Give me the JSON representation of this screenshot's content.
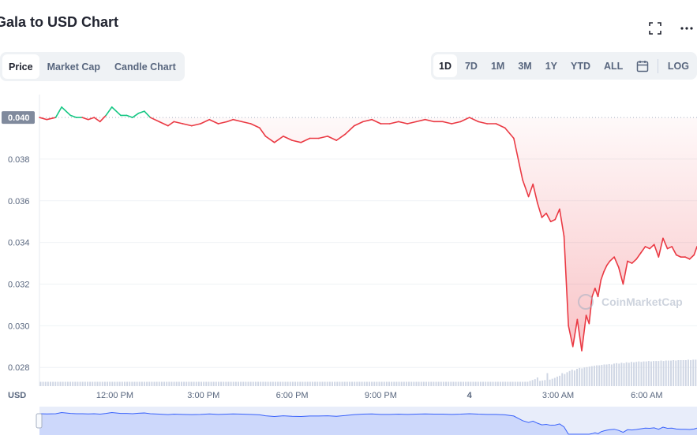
{
  "header": {
    "title": "Gala to USD Chart",
    "tabs": [
      {
        "label": "Price",
        "active": true
      },
      {
        "label": "Market Cap",
        "active": false
      },
      {
        "label": "Candle Chart",
        "active": false
      }
    ],
    "ranges": [
      {
        "label": "1D",
        "active": true
      },
      {
        "label": "7D",
        "active": false
      },
      {
        "label": "1M",
        "active": false
      },
      {
        "label": "3M",
        "active": false
      },
      {
        "label": "1Y",
        "active": false
      },
      {
        "label": "YTD",
        "active": false
      },
      {
        "label": "ALL",
        "active": false
      }
    ],
    "log_label": "LOG",
    "icons": [
      "fullscreen-icon",
      "more-icon",
      "calendar-icon"
    ]
  },
  "watermark": "CoinMarketCap",
  "chart_data": {
    "type": "line",
    "currency_label": "USD",
    "reference_price": 0.04,
    "reference_label": "0.040",
    "y_ticks": [
      0.028,
      0.03,
      0.032,
      0.034,
      0.036,
      0.038
    ],
    "y_tick_labels": [
      "0.028",
      "0.030",
      "0.032",
      "0.034",
      "0.036",
      "0.038"
    ],
    "ylim": [
      0.0271,
      0.0411
    ],
    "x_ticks": [
      "12:00 PM",
      "3:00 PM",
      "6:00 PM",
      "9:00 PM",
      "4",
      "3:00 AM",
      "6:00 AM"
    ],
    "x_tick_hours": [
      12,
      15,
      18,
      21,
      24,
      27,
      30
    ],
    "xlim": [
      9.45,
      31.7
    ],
    "colors": {
      "up": "#16c784",
      "down": "#ea3943",
      "volume": "#cfd6e4",
      "navigator": "#3861fb"
    },
    "series": [
      {
        "x": [
          9.45,
          9.7,
          10.0,
          10.2,
          10.5,
          10.7,
          10.9,
          11.1,
          11.3,
          11.5,
          11.7,
          11.9,
          12.2,
          12.4,
          12.6,
          12.8,
          13.0,
          13.2,
          13.5,
          13.8,
          14.0,
          14.3,
          14.6,
          14.9,
          15.2,
          15.5,
          15.8,
          16.0,
          16.3,
          16.6,
          16.9,
          17.1,
          17.4,
          17.7,
          18.0,
          18.3,
          18.6,
          18.9,
          19.2,
          19.5,
          19.8,
          20.1,
          20.4,
          20.7,
          21.0,
          21.3,
          21.6,
          21.9,
          22.2,
          22.5,
          22.8,
          23.1,
          23.4,
          23.7,
          24.0,
          24.3,
          24.6,
          24.9,
          25.2,
          25.5,
          25.8,
          26.0,
          26.15,
          26.3,
          26.45,
          26.6,
          26.75,
          26.9,
          27.05,
          27.2,
          27.35,
          27.5,
          27.65,
          27.8,
          27.95,
          28.05,
          28.15,
          28.25,
          28.35,
          28.45,
          28.55,
          28.65,
          28.75,
          28.9,
          29.05,
          29.2,
          29.35,
          29.5,
          29.65,
          29.8,
          29.95,
          30.1,
          30.25,
          30.4,
          30.55,
          30.7,
          30.85,
          31.0,
          31.15,
          31.3,
          31.45,
          31.6,
          31.7
        ],
        "y": [
          0.04,
          0.0399,
          0.04,
          0.0405,
          0.0401,
          0.04,
          0.04,
          0.0399,
          0.04,
          0.0398,
          0.0401,
          0.0405,
          0.0401,
          0.0401,
          0.04,
          0.0402,
          0.0403,
          0.04,
          0.0398,
          0.0396,
          0.0398,
          0.0397,
          0.0396,
          0.0397,
          0.0399,
          0.0397,
          0.0398,
          0.0399,
          0.0398,
          0.0397,
          0.0395,
          0.0391,
          0.0388,
          0.0391,
          0.0389,
          0.0388,
          0.039,
          0.039,
          0.0391,
          0.0389,
          0.0392,
          0.0396,
          0.0398,
          0.0399,
          0.0397,
          0.0397,
          0.0398,
          0.0397,
          0.0398,
          0.0399,
          0.0398,
          0.0398,
          0.0397,
          0.0398,
          0.04,
          0.0398,
          0.0397,
          0.0397,
          0.0395,
          0.039,
          0.037,
          0.0362,
          0.0368,
          0.0359,
          0.0352,
          0.0354,
          0.035,
          0.0351,
          0.0356,
          0.0343,
          0.03,
          0.029,
          0.0303,
          0.0288,
          0.0305,
          0.0301,
          0.0314,
          0.0318,
          0.0314,
          0.0322,
          0.0326,
          0.0329,
          0.0331,
          0.0333,
          0.0328,
          0.032,
          0.0331,
          0.033,
          0.0332,
          0.0335,
          0.0338,
          0.0337,
          0.0339,
          0.0333,
          0.0342,
          0.0337,
          0.0338,
          0.0334,
          0.0333,
          0.0333,
          0.0332,
          0.0334,
          0.0338
        ]
      }
    ],
    "volume_relative": [
      0.1,
      0.1,
      0.1,
      0.1,
      0.1,
      0.1,
      0.1,
      0.1,
      0.1,
      0.1,
      0.1,
      0.1,
      0.1,
      0.1,
      0.1,
      0.1,
      0.1,
      0.1,
      0.1,
      0.1,
      0.1,
      0.1,
      0.1,
      0.1,
      0.1,
      0.1,
      0.1,
      0.1,
      0.1,
      0.1,
      0.1,
      0.1,
      0.1,
      0.1,
      0.1,
      0.1,
      0.1,
      0.1,
      0.1,
      0.1,
      0.1,
      0.1,
      0.1,
      0.1,
      0.1,
      0.1,
      0.1,
      0.1,
      0.1,
      0.1,
      0.1,
      0.1,
      0.1,
      0.1,
      0.1,
      0.1,
      0.1,
      0.1,
      0.1,
      0.1,
      0.1,
      0.1,
      0.1,
      0.1,
      0.1,
      0.1,
      0.1,
      0.1,
      0.1,
      0.1,
      0.1,
      0.1,
      0.1,
      0.1,
      0.1,
      0.1,
      0.1,
      0.1,
      0.1,
      0.1,
      0.1,
      0.1,
      0.1,
      0.1,
      0.1,
      0.1,
      0.1,
      0.1,
      0.1,
      0.1,
      0.1,
      0.1,
      0.1,
      0.1,
      0.1,
      0.1,
      0.1,
      0.1,
      0.1,
      0.1,
      0.1,
      0.1,
      0.1,
      0.1,
      0.1,
      0.1,
      0.1,
      0.1,
      0.1,
      0.1,
      0.1,
      0.1,
      0.1,
      0.1,
      0.1,
      0.1,
      0.1,
      0.1,
      0.1,
      0.1,
      0.1,
      0.1,
      0.1,
      0.1,
      0.1,
      0.1,
      0.1,
      0.1,
      0.1,
      0.1,
      0.1,
      0.1,
      0.1,
      0.1,
      0.1,
      0.1,
      0.1,
      0.1,
      0.1,
      0.1,
      0.1,
      0.1,
      0.1,
      0.1,
      0.1,
      0.1,
      0.1,
      0.1,
      0.1,
      0.1,
      0.1,
      0.1,
      0.1,
      0.1,
      0.1,
      0.1,
      0.1,
      0.1,
      0.1,
      0.1,
      0.1,
      0.1,
      0.1,
      0.1,
      0.1,
      0.1,
      0.1,
      0.1,
      0.1,
      0.1,
      0.1,
      0.1,
      0.1,
      0.1,
      0.1,
      0.1,
      0.1,
      0.1,
      0.1,
      0.1,
      0.1,
      0.1,
      0.1,
      0.1,
      0.1,
      0.1,
      0.1,
      0.1,
      0.1,
      0.1,
      0.1,
      0.1,
      0.1,
      0.1,
      0.1,
      0.1,
      0.1,
      0.1,
      0.12,
      0.14,
      0.16,
      0.2,
      0.12,
      0.13,
      0.14,
      0.3,
      0.15,
      0.17,
      0.19,
      0.22,
      0.24,
      0.3,
      0.28,
      0.32,
      0.35,
      0.38,
      0.36,
      0.4,
      0.42,
      0.41,
      0.43,
      0.44,
      0.45,
      0.46,
      0.47,
      0.48,
      0.48,
      0.49,
      0.5,
      0.5,
      0.51,
      0.5,
      0.52,
      0.53,
      0.52,
      0.54,
      0.53,
      0.55,
      0.54,
      0.56,
      0.55,
      0.56,
      0.57,
      0.56,
      0.57,
      0.57,
      0.58,
      0.57,
      0.58,
      0.58,
      0.58,
      0.59,
      0.58,
      0.59,
      0.59,
      0.59,
      0.6,
      0.59,
      0.6,
      0.6,
      0.6,
      0.6,
      0.61,
      0.6,
      0.61,
      0.61
    ]
  }
}
